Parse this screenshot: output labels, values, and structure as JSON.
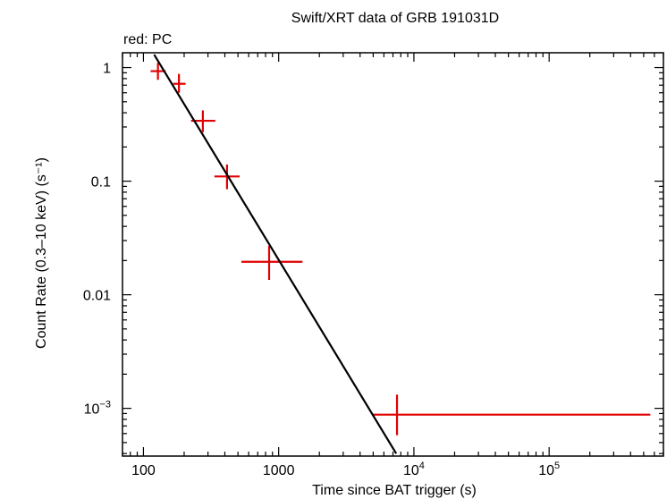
{
  "chart_data": {
    "type": "scatter",
    "title": "Swift/XRT data of GRB 191031D",
    "subtitle": "red: PC",
    "xlabel": "Time since BAT trigger (s)",
    "ylabel": "Count Rate (0.3–10 keV) (s⁻¹)",
    "xscale": "log",
    "yscale": "log",
    "xlim": [
      70,
      700000
    ],
    "ylim": [
      0.00038,
      1.35
    ],
    "x_ticks": [
      {
        "value": 100,
        "label": "100",
        "sup": ""
      },
      {
        "value": 1000,
        "label": "1000",
        "sup": ""
      },
      {
        "value": 10000,
        "label": "10",
        "sup": "4"
      },
      {
        "value": 100000,
        "label": "10",
        "sup": "5"
      }
    ],
    "y_ticks": [
      {
        "value": 1,
        "label": "1",
        "sup": ""
      },
      {
        "value": 0.1,
        "label": "0.1",
        "sup": ""
      },
      {
        "value": 0.01,
        "label": "0.01",
        "sup": ""
      },
      {
        "value": 0.001,
        "label": "10",
        "sup": "−3"
      }
    ],
    "series": [
      {
        "mode": "PC",
        "color": "#e00000",
        "points": [
          {
            "x": 128,
            "y": 0.93,
            "xerr": [
              113,
              146
            ],
            "yerr": [
              0.78,
              1.1
            ]
          },
          {
            "x": 183,
            "y": 0.72,
            "xerr": [
              166,
              205
            ],
            "yerr": [
              0.6,
              0.88
            ]
          },
          {
            "x": 275,
            "y": 0.34,
            "xerr": [
              225,
              340
            ],
            "yerr": [
              0.27,
              0.42
            ]
          },
          {
            "x": 415,
            "y": 0.11,
            "xerr": [
              335,
              515
            ],
            "yerr": [
              0.085,
              0.14
            ]
          },
          {
            "x": 850,
            "y": 0.0195,
            "xerr": [
              530,
              1500
            ],
            "yerr": [
              0.0135,
              0.027
            ]
          },
          {
            "x": 7500,
            "y": 0.00088,
            "xerr": [
              4900,
              560000
            ],
            "yerr": [
              0.00058,
              0.00132
            ]
          }
        ]
      }
    ],
    "model": {
      "name": "power-law fit",
      "color": "#000000",
      "points": [
        [
          120,
          1.3
        ],
        [
          7400,
          0.0004
        ]
      ]
    }
  }
}
